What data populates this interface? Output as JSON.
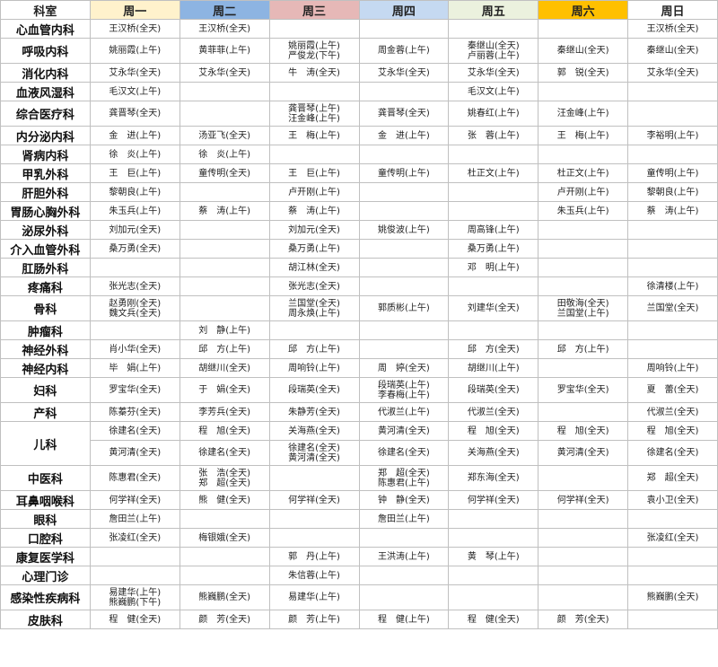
{
  "table": {
    "header": [
      "科室",
      "周一",
      "周二",
      "周三",
      "周四",
      "周五",
      "周六",
      "周日"
    ],
    "rows": [
      {
        "dept": "心血管内科",
        "slots": [
          [
            [
              "王汉桥(全天)"
            ],
            [
              "王汉桥(全天)"
            ],
            [],
            [],
            [],
            [],
            [
              "王汉桥(全天)"
            ]
          ]
        ]
      },
      {
        "dept": "呼吸内科",
        "slots": [
          [
            [
              "姚丽霞(上午)"
            ],
            [
              "黄菲菲(上午)"
            ],
            [
              "姚丽霞(上午)",
              "严俊龙(下午)"
            ],
            [
              "周金蓉(上午)"
            ],
            [
              "秦继山(全天)",
              "卢丽蓉(上午)"
            ],
            [
              "秦继山(全天)"
            ],
            [
              "秦继山(全天)"
            ]
          ]
        ]
      },
      {
        "dept": "消化内科",
        "slots": [
          [
            [
              "艾永华(全天)"
            ],
            [
              "艾永华(全天)"
            ],
            [
              "牛　涛(全天)"
            ],
            [
              "艾永华(全天)"
            ],
            [
              "艾永华(全天)"
            ],
            [
              "郭　锐(全天)"
            ],
            [
              "艾永华(全天)"
            ]
          ]
        ]
      },
      {
        "dept": "血液风湿科",
        "slots": [
          [
            [
              "毛汉文(上午)"
            ],
            [],
            [],
            [],
            [
              "毛汉文(上午)"
            ],
            [],
            []
          ]
        ]
      },
      {
        "dept": "综合医疗科",
        "slots": [
          [
            [
              "龚晋琴(全天)"
            ],
            [],
            [
              "龚晋琴(上午)",
              "汪金峰(上午)"
            ],
            [
              "龚晋琴(全天)"
            ],
            [
              "姚春红(上午)"
            ],
            [
              "汪金峰(上午)"
            ],
            []
          ]
        ]
      },
      {
        "dept": "内分泌内科",
        "slots": [
          [
            [
              "金　进(上午)"
            ],
            [
              "汤亚飞(全天)"
            ],
            [
              "王　梅(上午)"
            ],
            [
              "金　进(上午)"
            ],
            [
              "张　蓉(上午)"
            ],
            [
              "王　梅(上午)"
            ],
            [
              "李裕明(上午)"
            ]
          ]
        ]
      },
      {
        "dept": "肾病内科",
        "slots": [
          [
            [
              "徐　炎(上午)"
            ],
            [
              "徐　炎(上午)"
            ],
            [],
            [],
            [],
            [],
            []
          ]
        ]
      },
      {
        "dept": "甲乳外科",
        "slots": [
          [
            [
              "王　巨(上午)"
            ],
            [
              "童传明(全天)"
            ],
            [
              "王　巨(上午)"
            ],
            [
              "童传明(上午)"
            ],
            [
              "杜正文(上午)"
            ],
            [
              "杜正文(上午)"
            ],
            [
              "童传明(上午)"
            ]
          ]
        ]
      },
      {
        "dept": "肝胆外科",
        "slots": [
          [
            [
              "黎朝良(上午)"
            ],
            [],
            [
              "卢开刚(上午)"
            ],
            [],
            [],
            [
              "卢开刚(上午)"
            ],
            [
              "黎朝良(上午)"
            ]
          ]
        ]
      },
      {
        "dept": "胃肠心胸外科",
        "slots": [
          [
            [
              "朱玉兵(上午)"
            ],
            [
              "蔡　涛(上午)"
            ],
            [
              "蔡　涛(上午)"
            ],
            [],
            [],
            [
              "朱玉兵(上午)"
            ],
            [
              "蔡　涛(上午)"
            ]
          ]
        ]
      },
      {
        "dept": "泌尿外科",
        "slots": [
          [
            [
              "刘加元(全天)"
            ],
            [],
            [
              "刘加元(全天)"
            ],
            [
              "姚俊波(上午)"
            ],
            [
              "周高锋(上午)"
            ],
            [],
            []
          ]
        ]
      },
      {
        "dept": "介入血管外科",
        "slots": [
          [
            [
              "桑万勇(全天)"
            ],
            [],
            [
              "桑万勇(上午)"
            ],
            [],
            [
              "桑万勇(上午)"
            ],
            [],
            []
          ]
        ]
      },
      {
        "dept": "肛肠外科",
        "slots": [
          [
            [],
            [],
            [
              "胡江林(全天)"
            ],
            [],
            [
              "邓　明(上午)"
            ],
            [],
            []
          ]
        ]
      },
      {
        "dept": "疼痛科",
        "slots": [
          [
            [
              "张光志(全天)"
            ],
            [],
            [
              "张光志(全天)"
            ],
            [],
            [],
            [],
            [
              "徐清楼(上午)"
            ]
          ]
        ]
      },
      {
        "dept": "骨科",
        "slots": [
          [
            [
              "赵勇刚(全天)",
              "魏文兵(全天)"
            ],
            [],
            [
              "兰国堂(全天)",
              "周永焕(上午)"
            ],
            [
              "郭质彬(上午)"
            ],
            [
              "刘建华(全天)"
            ],
            [
              "田敬海(全天)",
              "兰国堂(上午)"
            ],
            [
              "兰国堂(全天)"
            ]
          ]
        ]
      },
      {
        "dept": "肿瘤科",
        "slots": [
          [
            [],
            [
              "刘　静(上午)"
            ],
            [],
            [],
            [],
            [],
            []
          ]
        ]
      },
      {
        "dept": "神经外科",
        "slots": [
          [
            [
              "肖小华(全天)"
            ],
            [
              "邱　方(上午)"
            ],
            [
              "邱　方(上午)"
            ],
            [],
            [
              "邱　方(全天)"
            ],
            [
              "邱　方(上午)"
            ],
            []
          ]
        ]
      },
      {
        "dept": "神经内科",
        "slots": [
          [
            [
              "毕　娟(上午)"
            ],
            [
              "胡继川(全天)"
            ],
            [
              "周响铃(上午)"
            ],
            [
              "周　婷(全天)"
            ],
            [
              "胡继川(上午)"
            ],
            [],
            [
              "周响铃(上午)"
            ]
          ]
        ]
      },
      {
        "dept": "妇科",
        "slots": [
          [
            [
              "罗宝华(全天)"
            ],
            [
              "于　娟(全天)"
            ],
            [
              "段瑞英(全天)"
            ],
            [
              "段瑞英(上午)",
              "李春梅(上午)"
            ],
            [
              "段瑞英(全天)"
            ],
            [
              "罗宝华(全天)"
            ],
            [
              "夏　蕾(全天)"
            ]
          ]
        ]
      },
      {
        "dept": "产科",
        "slots": [
          [
            [
              "陈蓁芬(全天)"
            ],
            [
              "李芳兵(全天)"
            ],
            [
              "朱静芳(全天)"
            ],
            [
              "代淑兰(上午)"
            ],
            [
              "代淑兰(全天)"
            ],
            [],
            [
              "代淑兰(全天)"
            ]
          ]
        ]
      },
      {
        "dept": "儿科",
        "slots": [
          [
            [
              "徐建名(全天)"
            ],
            [
              "程　旭(全天)"
            ],
            [
              "关海燕(全天)"
            ],
            [
              "黄河清(全天)"
            ],
            [
              "程　旭(全天)"
            ],
            [
              "程　旭(全天)"
            ],
            [
              "程　旭(全天)"
            ]
          ],
          [
            [
              "黄河清(全天)"
            ],
            [
              "徐建名(全天)"
            ],
            [
              "徐建名(全天)",
              "黄河清(全天)"
            ],
            [
              "徐建名(全天)"
            ],
            [
              "关海燕(全天)"
            ],
            [
              "黄河清(全天)"
            ],
            [
              "徐建名(全天)"
            ]
          ]
        ]
      },
      {
        "dept": "中医科",
        "slots": [
          [
            [
              "陈惠君(全天)"
            ],
            [
              "张　浩(全天)",
              "郑　超(全天)"
            ],
            [],
            [
              "郑　超(全天)",
              "陈惠君(上午)"
            ],
            [
              "郑东海(全天)"
            ],
            [],
            [
              "郑　超(全天)"
            ]
          ]
        ]
      },
      {
        "dept": "耳鼻咽喉科",
        "slots": [
          [
            [
              "何学祥(全天)"
            ],
            [
              "熊　健(全天)"
            ],
            [
              "何学祥(全天)"
            ],
            [
              "钟　静(全天)"
            ],
            [
              "何学祥(全天)"
            ],
            [
              "何学祥(全天)"
            ],
            [
              "袁小卫(全天)"
            ]
          ]
        ]
      },
      {
        "dept": "眼科",
        "slots": [
          [
            [
              "詹田兰(上午)"
            ],
            [],
            [],
            [
              "詹田兰(上午)"
            ],
            [],
            [],
            []
          ]
        ]
      },
      {
        "dept": "口腔科",
        "slots": [
          [
            [
              "张凌红(全天)"
            ],
            [
              "梅银娥(全天)"
            ],
            [],
            [],
            [],
            [],
            [
              "张凌红(全天)"
            ]
          ]
        ]
      },
      {
        "dept": "康复医学科",
        "slots": [
          [
            [],
            [],
            [
              "郭　丹(上午)"
            ],
            [
              "王洪涛(上午)"
            ],
            [
              "黄　琴(上午)"
            ],
            [],
            []
          ]
        ]
      },
      {
        "dept": "心理门诊",
        "slots": [
          [
            [],
            [],
            [
              "朱信蓉(上午)"
            ],
            [],
            [],
            [],
            []
          ]
        ]
      },
      {
        "dept": "感染性疾病科",
        "slots": [
          [
            [
              "易建华(上午)",
              "熊巍鹏(下午)"
            ],
            [
              "熊巍鹏(全天)"
            ],
            [
              "易建华(上午)"
            ],
            [],
            [],
            [],
            [
              "熊巍鹏(全天)"
            ]
          ]
        ]
      },
      {
        "dept": "皮肤科",
        "slots": [
          [
            [
              "程　健(全天)"
            ],
            [
              "颜　芳(全天)"
            ],
            [
              "颜　芳(上午)"
            ],
            [
              "程　健(上午)"
            ],
            [
              "程　健(全天)"
            ],
            [
              "颜　芳(全天)"
            ],
            []
          ]
        ]
      }
    ]
  }
}
